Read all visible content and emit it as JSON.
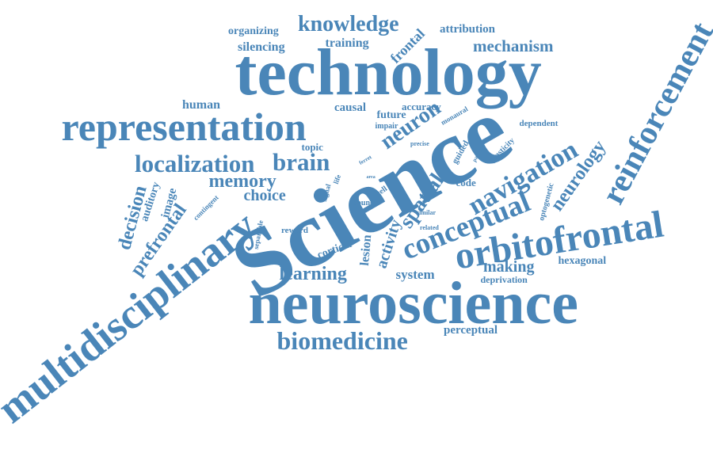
{
  "colors": {
    "word": "#4a86b8",
    "background": "#ffffff"
  },
  "words": [
    "technology",
    "Science",
    "neuroscience",
    "representation",
    "multidisciplinary",
    "orbitofrontal",
    "reinforcement",
    "conceptual",
    "navigation",
    "biomedicine",
    "localization",
    "brain",
    "neuron",
    "spatial",
    "knowledge",
    "mechanism",
    "prefrontal",
    "decision",
    "learning",
    "memory",
    "neurology",
    "choice",
    "making",
    "activity",
    "organizing",
    "silencing",
    "training",
    "frontal",
    "attribution",
    "human",
    "causal",
    "accuracy",
    "future",
    "dependent",
    "hexagonal",
    "system",
    "lesion",
    "perceptual",
    "cortical",
    "topic",
    "image",
    "auditory",
    "code",
    "deprivation",
    "reward",
    "optogenetic",
    "plasticity",
    "guided",
    "impair",
    "monaural",
    "precise",
    "contingent",
    "separable",
    "signal",
    "life",
    "sound",
    "cell",
    "similar",
    "related",
    "ferret",
    "pattern",
    "area"
  ]
}
